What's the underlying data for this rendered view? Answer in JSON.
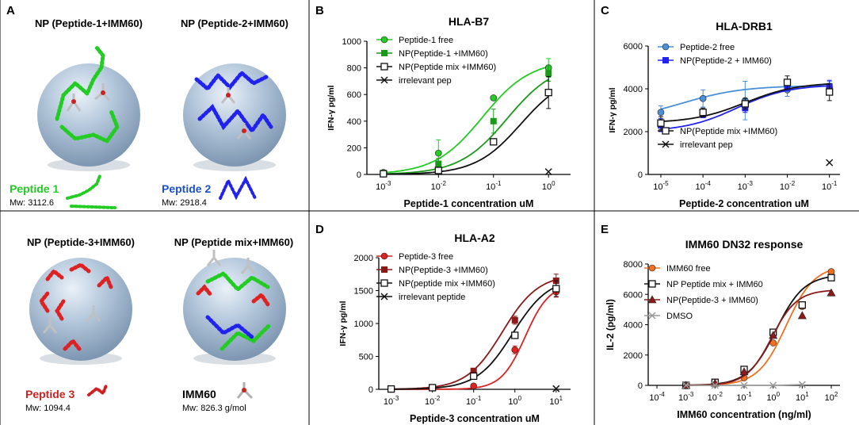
{
  "colors": {
    "green": "#22cc22",
    "darkgreen": "#1a9a1a",
    "blue": "#2222ee",
    "lightblue": "#4a90d9",
    "red": "#dd2222",
    "darkred": "#8b1a1a",
    "orange": "#f07020",
    "gray": "#999999",
    "sphere": "#a9bed4"
  },
  "panelA": {
    "label": "A",
    "np1_title": "NP (Peptide-1+IMM60)",
    "np2_title": "NP (Peptide-2+IMM60)",
    "np3_title": "NP (Peptide-3+IMM60)",
    "npmix_title": "NP (Peptide mix+IMM60)",
    "pep1_name": "Peptide 1",
    "pep1_mw": "Mw: 3112.6",
    "pep2_name": "Peptide 2",
    "pep2_mw": "Mw: 2918.4",
    "pep3_name": "Peptide 3",
    "pep3_mw": "Mw: 1094.4",
    "imm_name": "IMM60",
    "imm_mw": "Mw: 826.3 g/mol"
  },
  "chart_data": [
    {
      "panel": "B",
      "type": "line",
      "title": "HLA-B7",
      "xlabel": "Peptide-1 concentration uM",
      "ylabel": "IFN-γ pg/ml",
      "xscale": "log10",
      "x_ticks": [
        -3,
        -2,
        -1,
        0
      ],
      "x_tick_labels": [
        "10-3",
        "10-2",
        "10-1",
        "100"
      ],
      "y_ticks": [
        0,
        200,
        400,
        600,
        800,
        1000
      ],
      "ylim": [
        0,
        1000
      ],
      "series": [
        {
          "name": "Peptide-1 free",
          "color": "#22cc22",
          "marker": "circle",
          "x": [
            -3,
            -2,
            -1,
            0
          ],
          "y": [
            15,
            160,
            575,
            800
          ],
          "err": [
            0,
            100,
            0,
            70
          ],
          "curve": {
            "bottom": 0,
            "top": 860,
            "ec50": -1.2,
            "hill": 1
          }
        },
        {
          "name": "NP(Peptide-1 +IMM60)",
          "color": "#1a9a1a",
          "marker": "square",
          "x": [
            -3,
            -2,
            -1,
            0
          ],
          "y": [
            10,
            80,
            400,
            760
          ],
          "err": [
            0,
            40,
            90,
            60
          ],
          "curve": {
            "bottom": 0,
            "top": 840,
            "ec50": -0.75,
            "hill": 1
          }
        },
        {
          "name": "NP(Peptide mix +IMM60)",
          "color": "#111111",
          "marker": "opensquare",
          "x": [
            -3,
            -2,
            -1,
            0
          ],
          "y": [
            5,
            30,
            245,
            615
          ],
          "err": [
            0,
            0,
            0,
            120
          ],
          "curve": {
            "bottom": 0,
            "top": 760,
            "ec50": -0.5,
            "hill": 1.05
          }
        },
        {
          "name": "irrelevant pep",
          "color": "#111111",
          "marker": "x",
          "x": [
            0
          ],
          "y": [
            20
          ],
          "err": [
            0
          ]
        }
      ]
    },
    {
      "panel": "C",
      "type": "line",
      "title": "HLA-DRB1",
      "xlabel": "Peptide-2 concentration uM",
      "ylabel": "IFN-γ pg/ml",
      "xscale": "log10",
      "x_ticks": [
        -5,
        -4,
        -3,
        -2,
        -1
      ],
      "x_tick_labels": [
        "10-5",
        "10-4",
        "10-3",
        "10-2",
        "10-1"
      ],
      "y_ticks": [
        0,
        2000,
        4000,
        6000
      ],
      "ylim": [
        0,
        6000
      ],
      "series": [
        {
          "name": "Peptide-2 free",
          "color": "#4a90d9",
          "marker": "circle",
          "x": [
            -5,
            -4,
            -3,
            -2,
            -1
          ],
          "y": [
            2900,
            3550,
            3450,
            3950,
            4050
          ],
          "err": [
            300,
            400,
            900,
            300,
            300
          ],
          "curve": {
            "bottom": 2500,
            "top": 4150,
            "ec50": -4.5,
            "hill": 0.6
          }
        },
        {
          "name": "NP(Peptide-2 + IMM60)",
          "color": "#2222ee",
          "marker": "square",
          "x": [
            -5,
            -4,
            -3,
            -2,
            -1
          ],
          "y": [
            2300,
            2800,
            3100,
            4150,
            4100
          ],
          "err": [
            300,
            150,
            200,
            250,
            300
          ],
          "curve": {
            "bottom": 2000,
            "top": 4200,
            "ec50": -3.2,
            "hill": 0.7
          }
        },
        {
          "name": "NP(Peptide mix +IMM60)",
          "color": "#111111",
          "marker": "opensquare",
          "x": [
            -5,
            -4,
            -3,
            -2,
            -1
          ],
          "y": [
            2400,
            2900,
            3300,
            4300,
            3850
          ],
          "err": [
            300,
            200,
            250,
            300,
            400
          ],
          "curve": {
            "bottom": 2400,
            "top": 4300,
            "ec50": -3.0,
            "hill": 0.7
          }
        },
        {
          "name": "irrelevant pep",
          "color": "#111111",
          "marker": "x",
          "x": [
            -1
          ],
          "y": [
            550
          ],
          "err": [
            0
          ]
        }
      ]
    },
    {
      "panel": "D",
      "type": "line",
      "title": "HLA-A2",
      "xlabel": "Peptide-3 concentration uM",
      "ylabel": "IFN-γ pg/ml",
      "xscale": "log10",
      "x_ticks": [
        -3,
        -2,
        -1,
        0,
        1
      ],
      "x_tick_labels": [
        "10-3",
        "10-2",
        "10-1",
        "100",
        "101"
      ],
      "y_ticks": [
        0,
        500,
        1000,
        1500,
        2000
      ],
      "ylim": [
        0,
        2000
      ],
      "series": [
        {
          "name": "Peptide-3 free",
          "color": "#dd2222",
          "marker": "circle",
          "x": [
            -3,
            -2,
            -1,
            0,
            1
          ],
          "y": [
            0,
            20,
            50,
            600,
            1480
          ],
          "err": [
            0,
            0,
            0,
            60,
            80
          ],
          "curve": {
            "bottom": 0,
            "top": 1600,
            "ec50": 0.25,
            "hill": 1.5
          }
        },
        {
          "name": "NP(Peptide-3 +IMM60)",
          "color": "#8b1a1a",
          "marker": "square",
          "x": [
            -3,
            -2,
            -1,
            0,
            1
          ],
          "y": [
            10,
            30,
            280,
            1050,
            1650
          ],
          "err": [
            0,
            0,
            40,
            60,
            100
          ],
          "curve": {
            "bottom": 0,
            "top": 1750,
            "ec50": -0.3,
            "hill": 1.0
          }
        },
        {
          "name": "NP(peptide mix +IMM60)",
          "color": "#111111",
          "marker": "opensquare",
          "x": [
            -3,
            -2,
            -1,
            0,
            1
          ],
          "y": [
            5,
            25,
            200,
            820,
            1530
          ],
          "err": [
            0,
            0,
            0,
            0,
            120
          ],
          "curve": {
            "bottom": 0,
            "top": 1700,
            "ec50": -0.05,
            "hill": 1.0
          }
        },
        {
          "name": "irrelevant peptide",
          "color": "#111111",
          "marker": "x",
          "x": [
            1
          ],
          "y": [
            10
          ],
          "err": [
            0
          ]
        }
      ]
    },
    {
      "panel": "E",
      "type": "line",
      "title": "IMM60 DN32 response",
      "xlabel": "IMM60 concentration (ng/ml)",
      "ylabel": "IL-2 (pg/ml)",
      "xscale": "log10",
      "x_ticks": [
        -4,
        -3,
        -2,
        -1,
        0,
        1,
        2
      ],
      "x_tick_labels": [
        "10-4",
        "10-3",
        "10-2",
        "10-1",
        "100",
        "101",
        "102"
      ],
      "y_ticks": [
        0,
        2000,
        4000,
        6000,
        8000
      ],
      "ylim": [
        0,
        8000
      ],
      "series": [
        {
          "name": "IMM60 free",
          "color": "#f07020",
          "marker": "circle",
          "x": [
            -3,
            -2,
            -1,
            0,
            1,
            2
          ],
          "y": [
            0,
            100,
            500,
            2800,
            5200,
            7500
          ],
          "err": [
            0,
            0,
            0,
            0,
            0,
            0
          ],
          "curve": {
            "bottom": 0,
            "top": 7900,
            "ec50": 0.45,
            "hill": 0.9
          }
        },
        {
          "name": "NP Peptide mix + IMM60",
          "color": "#111111",
          "marker": "opensquare",
          "x": [
            -3,
            -2,
            -1,
            0,
            1,
            2
          ],
          "y": [
            0,
            200,
            1050,
            3500,
            5300,
            7100
          ],
          "err": [
            0,
            0,
            0,
            0,
            0,
            0
          ],
          "curve": {
            "bottom": 0,
            "top": 7300,
            "ec50": 0.1,
            "hill": 0.9
          }
        },
        {
          "name": "NP(Peptide-3 + IMM60)",
          "color": "#8b1a1a",
          "marker": "triangle",
          "x": [
            -3,
            -2,
            -1,
            0,
            1,
            2
          ],
          "y": [
            0,
            150,
            900,
            3300,
            4600,
            6100
          ],
          "err": [
            0,
            0,
            0,
            0,
            0,
            0
          ],
          "curve": {
            "bottom": 0,
            "top": 6300,
            "ec50": -0.05,
            "hill": 1.0
          }
        },
        {
          "name": "DMSO",
          "color": "#999999",
          "marker": "x",
          "x": [
            -3,
            -2,
            -1,
            0,
            1
          ],
          "y": [
            0,
            0,
            0,
            0,
            50
          ],
          "err": [
            0,
            0,
            0,
            0,
            0
          ],
          "line": true
        }
      ]
    }
  ]
}
